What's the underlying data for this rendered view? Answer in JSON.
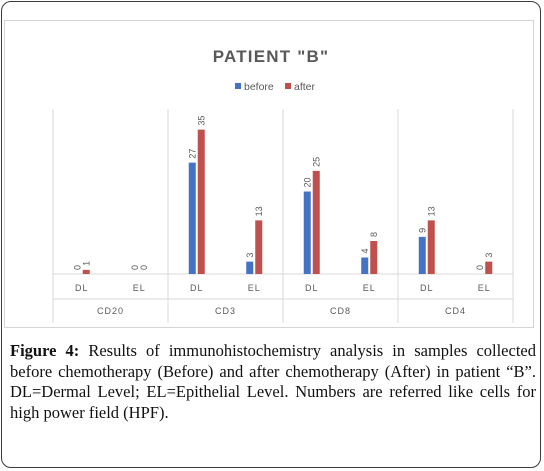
{
  "figure": {
    "label": "Figure 4:",
    "caption": " Results of immunohistochemistry analysis in samples collected before chemotherapy (Before) and after chemotherapy (After) in patient “B”. DL=Dermal Level; EL=Epithelial Level. Numbers are referred like cells for high power field (HPF)."
  },
  "chart_data": {
    "type": "bar",
    "title": "PATIENT \"B\"",
    "xlabel": "",
    "ylabel": "",
    "legend_position": "top",
    "grid": false,
    "ylim": [
      0,
      40
    ],
    "groups": [
      "CD20",
      "CD3",
      "CD8",
      "CD4"
    ],
    "categories": [
      "DL",
      "EL",
      "DL",
      "EL",
      "DL",
      "EL",
      "DL",
      "EL"
    ],
    "series": [
      {
        "name": "before",
        "color": "#4472C4",
        "values": [
          0,
          0,
          27,
          3,
          20,
          4,
          9,
          0
        ]
      },
      {
        "name": "after",
        "color": "#C0504D",
        "values": [
          1,
          0,
          35,
          13,
          25,
          8,
          13,
          3
        ]
      }
    ]
  }
}
